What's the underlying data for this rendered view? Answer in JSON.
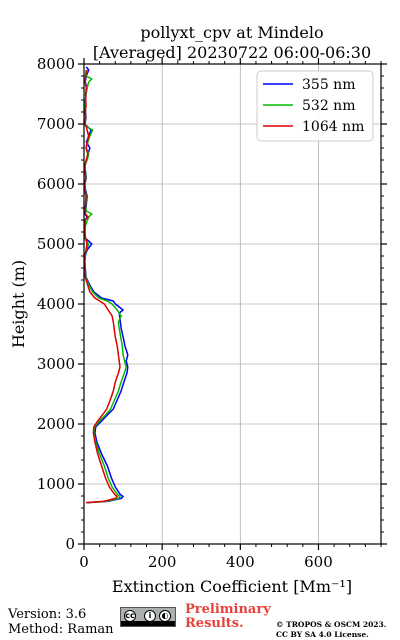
{
  "title_line1": "pollyxt_cpv at Mindelo",
  "title_line2": "[Averaged] 20230722 06:00-06:30",
  "footer": {
    "version": "Version: 3.6",
    "method": "Method: Raman",
    "preliminary_line1": "Preliminary",
    "preliminary_line2": "Results.",
    "copyright_line1": "© TROPOS & OSCM 2023.",
    "copyright_line2": "CC BY SA 4.0 License.",
    "license_icon": "cc-by-sa-icon"
  },
  "chart_data": {
    "type": "line",
    "orientation": "vertical-profile",
    "xlabel": "Extinction Coefficient [Mm⁻¹]",
    "ylabel": "Height (m)",
    "xlim": [
      0,
      760
    ],
    "ylim": [
      0,
      8000
    ],
    "xticks": [
      0,
      200,
      400,
      600
    ],
    "yticks": [
      0,
      1000,
      2000,
      3000,
      4000,
      5000,
      6000,
      7000,
      8000
    ],
    "grid": true,
    "legend_position": "top-right",
    "series": [
      {
        "name": "355 nm",
        "color": "#0000ff",
        "points": [
          [
            10,
            690
          ],
          [
            60,
            710
          ],
          [
            95,
            760
          ],
          [
            100,
            790
          ],
          [
            92,
            830
          ],
          [
            80,
            950
          ],
          [
            70,
            1100
          ],
          [
            60,
            1300
          ],
          [
            45,
            1500
          ],
          [
            33,
            1700
          ],
          [
            28,
            1850
          ],
          [
            30,
            1950
          ],
          [
            45,
            2050
          ],
          [
            60,
            2150
          ],
          [
            75,
            2250
          ],
          [
            85,
            2400
          ],
          [
            95,
            2550
          ],
          [
            102,
            2700
          ],
          [
            110,
            2850
          ],
          [
            112,
            2950
          ],
          [
            108,
            3050
          ],
          [
            112,
            3150
          ],
          [
            105,
            3300
          ],
          [
            100,
            3450
          ],
          [
            95,
            3600
          ],
          [
            92,
            3750
          ],
          [
            90,
            3850
          ],
          [
            100,
            3900
          ],
          [
            90,
            3950
          ],
          [
            80,
            4000
          ],
          [
            75,
            4050
          ],
          [
            45,
            4100
          ],
          [
            25,
            4200
          ],
          [
            12,
            4350
          ],
          [
            5,
            4450
          ],
          [
            2,
            4700
          ],
          [
            3,
            4800
          ],
          [
            8,
            4900
          ],
          [
            20,
            5000
          ],
          [
            12,
            5050
          ],
          [
            2,
            5100
          ],
          [
            3,
            5400
          ],
          [
            8,
            5450
          ],
          [
            2,
            5500
          ],
          [
            5,
            5600
          ],
          [
            8,
            5800
          ],
          [
            4,
            5900
          ],
          [
            2,
            6000
          ],
          [
            6,
            6100
          ],
          [
            2,
            6300
          ],
          [
            6,
            6400
          ],
          [
            10,
            6500
          ],
          [
            15,
            6600
          ],
          [
            6,
            6700
          ],
          [
            12,
            6800
          ],
          [
            18,
            6900
          ],
          [
            10,
            6950
          ],
          [
            2,
            7000
          ],
          [
            5,
            7100
          ],
          [
            3,
            7300
          ],
          [
            5,
            7500
          ],
          [
            8,
            7600
          ],
          [
            3,
            7700
          ],
          [
            6,
            7800
          ],
          [
            12,
            7900
          ],
          [
            6,
            7950
          ]
        ]
      },
      {
        "name": "532 nm",
        "color": "#00bb00",
        "points": [
          [
            8,
            690
          ],
          [
            55,
            710
          ],
          [
            88,
            760
          ],
          [
            92,
            790
          ],
          [
            85,
            830
          ],
          [
            72,
            950
          ],
          [
            62,
            1100
          ],
          [
            52,
            1300
          ],
          [
            40,
            1500
          ],
          [
            30,
            1700
          ],
          [
            25,
            1850
          ],
          [
            27,
            1950
          ],
          [
            40,
            2050
          ],
          [
            55,
            2150
          ],
          [
            68,
            2250
          ],
          [
            78,
            2400
          ],
          [
            88,
            2550
          ],
          [
            95,
            2700
          ],
          [
            103,
            2850
          ],
          [
            108,
            2950
          ],
          [
            104,
            3050
          ],
          [
            100,
            3150
          ],
          [
            98,
            3300
          ],
          [
            94,
            3450
          ],
          [
            90,
            3600
          ],
          [
            88,
            3700
          ],
          [
            95,
            3800
          ],
          [
            85,
            3900
          ],
          [
            72,
            4000
          ],
          [
            60,
            4050
          ],
          [
            38,
            4100
          ],
          [
            22,
            4200
          ],
          [
            10,
            4350
          ],
          [
            4,
            4450
          ],
          [
            2,
            4700
          ],
          [
            3,
            4800
          ],
          [
            6,
            4900
          ],
          [
            12,
            5000
          ],
          [
            6,
            5050
          ],
          [
            2,
            5100
          ],
          [
            3,
            5300
          ],
          [
            12,
            5450
          ],
          [
            20,
            5500
          ],
          [
            6,
            5550
          ],
          [
            4,
            5600
          ],
          [
            6,
            5800
          ],
          [
            3,
            5900
          ],
          [
            2,
            6000
          ],
          [
            5,
            6100
          ],
          [
            2,
            6300
          ],
          [
            8,
            6400
          ],
          [
            12,
            6500
          ],
          [
            6,
            6600
          ],
          [
            10,
            6700
          ],
          [
            15,
            6800
          ],
          [
            22,
            6900
          ],
          [
            8,
            6950
          ],
          [
            2,
            7000
          ],
          [
            4,
            7100
          ],
          [
            3,
            7300
          ],
          [
            5,
            7500
          ],
          [
            8,
            7600
          ],
          [
            12,
            7700
          ],
          [
            20,
            7750
          ],
          [
            5,
            7800
          ],
          [
            8,
            7900
          ]
        ]
      },
      {
        "name": "1064 nm",
        "color": "#dd0000",
        "points": [
          [
            5,
            690
          ],
          [
            50,
            710
          ],
          [
            80,
            760
          ],
          [
            85,
            790
          ],
          [
            78,
            830
          ],
          [
            65,
            950
          ],
          [
            55,
            1100
          ],
          [
            45,
            1300
          ],
          [
            35,
            1500
          ],
          [
            28,
            1700
          ],
          [
            24,
            1850
          ],
          [
            25,
            1950
          ],
          [
            35,
            2050
          ],
          [
            47,
            2150
          ],
          [
            58,
            2250
          ],
          [
            67,
            2400
          ],
          [
            75,
            2550
          ],
          [
            80,
            2700
          ],
          [
            88,
            2850
          ],
          [
            92,
            2950
          ],
          [
            90,
            3050
          ],
          [
            88,
            3150
          ],
          [
            85,
            3300
          ],
          [
            80,
            3450
          ],
          [
            77,
            3600
          ],
          [
            75,
            3700
          ],
          [
            72,
            3800
          ],
          [
            62,
            3900
          ],
          [
            52,
            4000
          ],
          [
            40,
            4050
          ],
          [
            28,
            4100
          ],
          [
            15,
            4200
          ],
          [
            8,
            4350
          ],
          [
            3,
            4450
          ],
          [
            2,
            4700
          ],
          [
            2,
            4800
          ],
          [
            5,
            4900
          ],
          [
            8,
            5000
          ],
          [
            4,
            5100
          ],
          [
            2,
            5200
          ],
          [
            3,
            5400
          ],
          [
            10,
            5450
          ],
          [
            4,
            5500
          ],
          [
            3,
            5600
          ],
          [
            5,
            5800
          ],
          [
            2,
            5900
          ],
          [
            2,
            6000
          ],
          [
            4,
            6100
          ],
          [
            2,
            6300
          ],
          [
            6,
            6400
          ],
          [
            10,
            6500
          ],
          [
            5,
            6600
          ],
          [
            8,
            6700
          ],
          [
            12,
            6800
          ],
          [
            8,
            6900
          ],
          [
            6,
            6950
          ],
          [
            2,
            7000
          ],
          [
            4,
            7100
          ],
          [
            3,
            7200
          ],
          [
            5,
            7300
          ],
          [
            4,
            7500
          ],
          [
            6,
            7600
          ],
          [
            3,
            7700
          ],
          [
            4,
            7800
          ],
          [
            6,
            7900
          ]
        ]
      }
    ]
  }
}
